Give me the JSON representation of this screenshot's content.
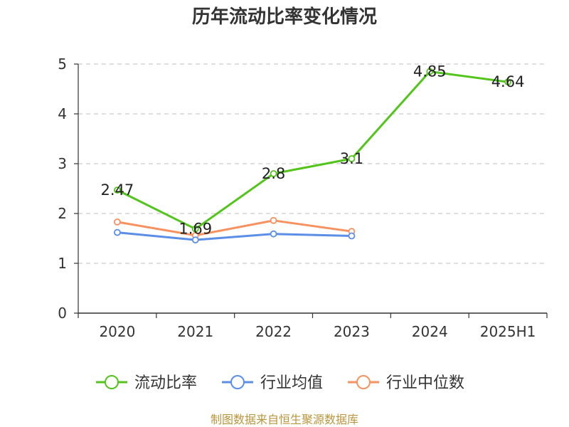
{
  "chart_data": {
    "type": "line",
    "title": "历年流动比率变化情况",
    "categories": [
      "2020",
      "2021",
      "2022",
      "2023",
      "2024",
      "2025H1"
    ],
    "ylim": [
      0,
      5
    ],
    "yticks": [
      "0",
      "1",
      "2",
      "3",
      "4",
      "5"
    ],
    "grid": true,
    "legend_position": "bottom",
    "series": [
      {
        "name": "流动比率",
        "color": "#52c41a",
        "values": [
          2.47,
          1.69,
          2.8,
          3.1,
          4.85,
          4.64
        ],
        "labels": [
          "2.47",
          "1.69",
          "2.8",
          "3.1",
          "4.85",
          "4.64"
        ]
      },
      {
        "name": "行业均值",
        "color": "#5b8ee6",
        "values": [
          1.62,
          1.47,
          1.59,
          1.55,
          null,
          null
        ]
      },
      {
        "name": "行业中位数",
        "color": "#f7915f",
        "values": [
          1.83,
          1.56,
          1.86,
          1.64,
          null,
          null
        ]
      }
    ],
    "source": "制图数据来自恒生聚源数据库"
  }
}
